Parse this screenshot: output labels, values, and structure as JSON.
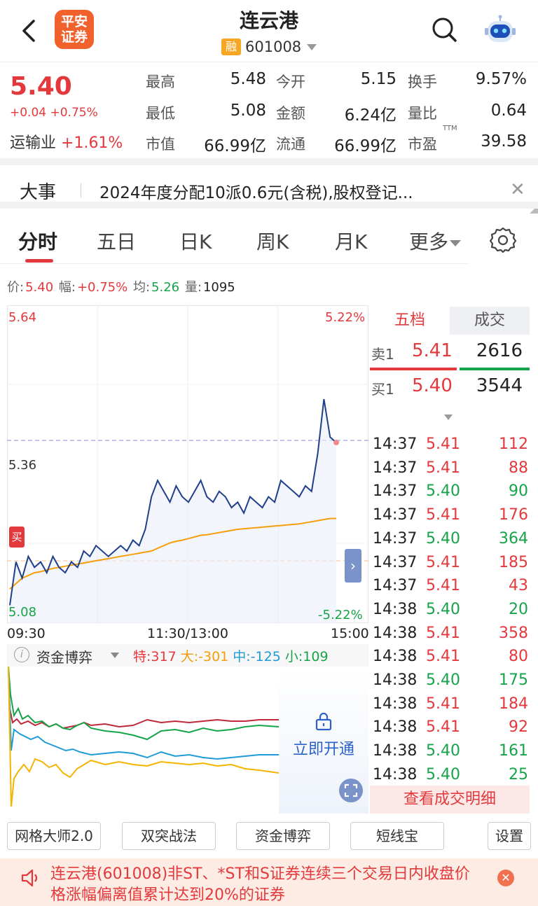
{
  "header": {
    "broker_logo_text": "平安证券",
    "title": "连云港",
    "margin_badge": "融",
    "code": "601008"
  },
  "quote": {
    "last": "5.40",
    "change": "+0.04 +0.75%",
    "sector_label": "运输业",
    "sector_change": "+1.61%",
    "fields": [
      {
        "label": "最高",
        "value": "5.48",
        "tone": "red"
      },
      {
        "label": "今开",
        "value": "5.15",
        "tone": "green"
      },
      {
        "label": "换手",
        "value": "9.57%",
        "tone": "dark"
      },
      {
        "label": "最低",
        "value": "5.08",
        "tone": "green"
      },
      {
        "label": "金额",
        "value": "6.24亿",
        "tone": "dark"
      },
      {
        "label": "量比",
        "value": "0.64",
        "tone": "dark"
      },
      {
        "label": "市值",
        "value": "66.99亿",
        "tone": "dark"
      },
      {
        "label": "流通",
        "value": "66.99亿",
        "tone": "dark"
      },
      {
        "label": "市盈",
        "value": "39.58",
        "tone": "dark"
      }
    ],
    "ttm": "TTM"
  },
  "event": {
    "label": "大事",
    "text": "2024年度分配10派0.6元(含税),股权登记..."
  },
  "tabs": [
    "分时",
    "五日",
    "日K",
    "周K",
    "月K",
    "更多"
  ],
  "info_line": {
    "price_label": "价:",
    "price": "5.40",
    "amp_label": "幅:",
    "amp": "+0.75%",
    "avg_label": "均:",
    "avg": "5.26",
    "vol_label": "量:",
    "vol": "1095"
  },
  "chart": {
    "y_top": "5.64",
    "y_mid": "5.36",
    "y_bottom": "5.08",
    "pct_top": "5.22%",
    "pct_bottom": "-5.22%",
    "time_labels": [
      "09:30",
      "11:30/13:00",
      "15:00"
    ],
    "buy_marker": "买",
    "expand": "›"
  },
  "chart_data": {
    "type": "line",
    "ylim": [
      5.08,
      5.64
    ],
    "reference_price": 5.36,
    "series": [
      {
        "values": [
          5.1,
          5.18,
          5.15,
          5.19,
          5.17,
          5.18,
          5.16,
          5.19,
          5.17,
          5.16,
          5.18,
          5.17,
          5.2,
          5.19,
          5.21,
          5.2,
          5.19,
          5.2,
          5.21,
          5.2,
          5.22,
          5.21,
          5.24,
          5.3,
          5.33,
          5.31,
          5.29,
          5.32,
          5.3,
          5.29,
          5.31,
          5.33,
          5.3,
          5.29,
          5.31,
          5.3,
          5.28,
          5.29,
          5.27,
          5.3,
          5.29,
          5.28,
          5.3,
          5.29,
          5.33,
          5.32,
          5.31,
          5.3,
          5.32,
          5.31,
          5.38,
          5.48,
          5.41,
          5.4
        ]
      },
      {
        "values": [
          5.13,
          5.14,
          5.15,
          5.155,
          5.16,
          5.162,
          5.165,
          5.168,
          5.17,
          5.172,
          5.174,
          5.176,
          5.178,
          5.18,
          5.182,
          5.184,
          5.186,
          5.188,
          5.19,
          5.192,
          5.194,
          5.196,
          5.198,
          5.2,
          5.205,
          5.21,
          5.215,
          5.218,
          5.22,
          5.223,
          5.226,
          5.229,
          5.23,
          5.232,
          5.234,
          5.236,
          5.238,
          5.24,
          5.241,
          5.242,
          5.243,
          5.244,
          5.245,
          5.246,
          5.247,
          5.248,
          5.249,
          5.25,
          5.252,
          5.254,
          5.256,
          5.258,
          5.26,
          5.26
        ]
      }
    ]
  },
  "order_book": {
    "tab_five": "五档",
    "tab_trades": "成交",
    "sell1_label": "卖1",
    "sell1_price": "5.41",
    "sell1_vol": "2616",
    "buy1_label": "买1",
    "buy1_price": "5.40",
    "buy1_vol": "3544"
  },
  "trades": [
    {
      "time": "14:37",
      "price": "5.41",
      "vol": "112",
      "side": "red"
    },
    {
      "time": "14:37",
      "price": "5.41",
      "vol": "88",
      "side": "red"
    },
    {
      "time": "14:37",
      "price": "5.40",
      "vol": "90",
      "side": "green"
    },
    {
      "time": "14:37",
      "price": "5.41",
      "vol": "176",
      "side": "red"
    },
    {
      "time": "14:37",
      "price": "5.40",
      "vol": "364",
      "side": "green"
    },
    {
      "time": "14:37",
      "price": "5.41",
      "vol": "185",
      "side": "red"
    },
    {
      "time": "14:37",
      "price": "5.41",
      "vol": "43",
      "side": "red"
    },
    {
      "time": "14:38",
      "price": "5.40",
      "vol": "20",
      "side": "green"
    },
    {
      "time": "14:38",
      "price": "5.41",
      "vol": "358",
      "side": "red"
    },
    {
      "time": "14:38",
      "price": "5.41",
      "vol": "80",
      "side": "red"
    },
    {
      "time": "14:38",
      "price": "5.40",
      "vol": "175",
      "side": "green"
    },
    {
      "time": "14:38",
      "price": "5.41",
      "vol": "184",
      "side": "red"
    },
    {
      "time": "14:38",
      "price": "5.41",
      "vol": "92",
      "side": "red"
    },
    {
      "time": "14:38",
      "price": "5.40",
      "vol": "161",
      "side": "green"
    },
    {
      "time": "14:38",
      "price": "5.40",
      "vol": "25",
      "side": "green"
    }
  ],
  "view_detail": "查看成交明细",
  "capital": {
    "title": "资金博弈",
    "special": "特:317",
    "large": "大:-301",
    "medium": "中:-125",
    "small": "小:109",
    "unlock": "立即开通"
  },
  "tools": [
    "网格大师2.0",
    "双突战法",
    "资金博弈",
    "短线宝",
    "设置"
  ],
  "warning": {
    "text": "连云港(601008)非ST、*ST和S证券连续三个交易日内收盘价格涨幅偏离值累计达到20%的证券"
  },
  "colors": {
    "up": "#e4393c",
    "down": "#16a34a",
    "price_line": "#1f3f8c",
    "avg_line": "#f59e0b",
    "accent_blue": "#2a62c9"
  }
}
